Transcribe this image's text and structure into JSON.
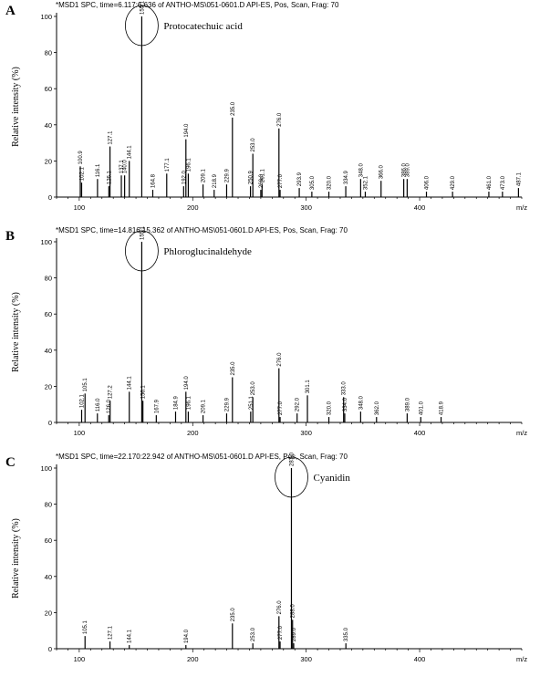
{
  "chart_data": [
    {
      "type": "bar",
      "panel": "A",
      "header": "*MSD1 SPC, time=6.117:6.636 of ANTHO-MS\\051-0601.D    API-ES, Pos, Scan, Frag: 70",
      "ylabel": "Relative intensity (%)",
      "xlabel": "m/z",
      "xlim": [
        80,
        490
      ],
      "ylim": [
        0,
        100
      ],
      "x_ticks": [
        100,
        200,
        300,
        400
      ],
      "y_ticks": [
        0,
        20,
        40,
        60,
        80,
        100
      ],
      "annotation": "Protocatechuic acid",
      "annotated_peak": 155.1,
      "peaks": [
        {
          "mz": 102.1,
          "y": 8,
          "label": "102.1"
        },
        {
          "mz": 100.9,
          "y": 17,
          "label": "100.9"
        },
        {
          "mz": 116.1,
          "y": 10,
          "label": "116.1"
        },
        {
          "mz": 126.1,
          "y": 6,
          "label": "126.1"
        },
        {
          "mz": 127.1,
          "y": 28,
          "label": "127.1"
        },
        {
          "mz": 137.1,
          "y": 12,
          "label": "137.1"
        },
        {
          "mz": 140.0,
          "y": 12,
          "label": "140.0"
        },
        {
          "mz": 144.1,
          "y": 20,
          "label": "144.1"
        },
        {
          "mz": 155.1,
          "y": 100,
          "label": "155.1"
        },
        {
          "mz": 164.8,
          "y": 4,
          "label": "164.8"
        },
        {
          "mz": 177.1,
          "y": 13,
          "label": "177.1"
        },
        {
          "mz": 192.0,
          "y": 6,
          "label": "192.0"
        },
        {
          "mz": 194.0,
          "y": 32,
          "label": "194.0"
        },
        {
          "mz": 196.1,
          "y": 13,
          "label": "196.1"
        },
        {
          "mz": 209.1,
          "y": 7,
          "label": "209.1"
        },
        {
          "mz": 218.9,
          "y": 4,
          "label": "218.9"
        },
        {
          "mz": 229.9,
          "y": 7,
          "label": "229.9"
        },
        {
          "mz": 235.0,
          "y": 44,
          "label": "235.0"
        },
        {
          "mz": 250.9,
          "y": 6,
          "label": "250.9"
        },
        {
          "mz": 253.0,
          "y": 24,
          "label": "253.0"
        },
        {
          "mz": 260.0,
          "y": 4,
          "label": "260.0"
        },
        {
          "mz": 261.1,
          "y": 7,
          "label": "261.1"
        },
        {
          "mz": 276.0,
          "y": 38,
          "label": "276.0"
        },
        {
          "mz": 277.0,
          "y": 4,
          "label": "277.0"
        },
        {
          "mz": 293.9,
          "y": 5,
          "label": "293.9"
        },
        {
          "mz": 305.0,
          "y": 3,
          "label": "305.0"
        },
        {
          "mz": 320.0,
          "y": 3,
          "label": "320.0"
        },
        {
          "mz": 334.9,
          "y": 6,
          "label": "334.9"
        },
        {
          "mz": 348.0,
          "y": 10,
          "label": "348.0"
        },
        {
          "mz": 352.1,
          "y": 3,
          "label": "352.1"
        },
        {
          "mz": 366.0,
          "y": 9,
          "label": "366.0"
        },
        {
          "mz": 386.0,
          "y": 10,
          "label": "386.0"
        },
        {
          "mz": 389.0,
          "y": 10,
          "label": "389.0"
        },
        {
          "mz": 406.0,
          "y": 3,
          "label": "406.0"
        },
        {
          "mz": 429.0,
          "y": 3,
          "label": "429.0"
        },
        {
          "mz": 461.0,
          "y": 3,
          "label": "461.0"
        },
        {
          "mz": 473.0,
          "y": 3,
          "label": "473.0"
        },
        {
          "mz": 487.1,
          "y": 5,
          "label": "487.1"
        }
      ]
    },
    {
      "type": "bar",
      "panel": "B",
      "header": "*MSD1 SPC, time=14.816:15.362 of ANTHO-MS\\051-0601.D    API-ES, Pos, Scan, Frag: 70",
      "ylabel": "Relative intensity (%)",
      "xlabel": "m/z",
      "xlim": [
        80,
        490
      ],
      "ylim": [
        0,
        100
      ],
      "x_ticks": [
        100,
        200,
        300,
        400
      ],
      "y_ticks": [
        0,
        20,
        40,
        60,
        80,
        100
      ],
      "annotation": "Phloroglucinaldehyde",
      "annotated_peak": 155.1,
      "peaks": [
        {
          "mz": 102.1,
          "y": 7,
          "label": "102.1"
        },
        {
          "mz": 105.1,
          "y": 16,
          "label": "105.1"
        },
        {
          "mz": 116.0,
          "y": 5,
          "label": "116.0"
        },
        {
          "mz": 126.0,
          "y": 4,
          "label": "126.0"
        },
        {
          "mz": 127.2,
          "y": 12,
          "label": "127.2"
        },
        {
          "mz": 144.1,
          "y": 17,
          "label": "144.1"
        },
        {
          "mz": 155.1,
          "y": 100,
          "label": "155.1"
        },
        {
          "mz": 156.1,
          "y": 12,
          "label": "156.1"
        },
        {
          "mz": 167.9,
          "y": 4,
          "label": "167.9"
        },
        {
          "mz": 184.9,
          "y": 6,
          "label": "184.9"
        },
        {
          "mz": 194.0,
          "y": 17,
          "label": "194.0"
        },
        {
          "mz": 196.1,
          "y": 6,
          "label": "196.1"
        },
        {
          "mz": 209.1,
          "y": 4,
          "label": "209.1"
        },
        {
          "mz": 229.9,
          "y": 5,
          "label": "229.9"
        },
        {
          "mz": 235.0,
          "y": 25,
          "label": "235.0"
        },
        {
          "mz": 251.1,
          "y": 6,
          "label": "251.1"
        },
        {
          "mz": 253.0,
          "y": 14,
          "label": "253.0"
        },
        {
          "mz": 276.0,
          "y": 30,
          "label": "276.0"
        },
        {
          "mz": 277.0,
          "y": 3,
          "label": "277.0"
        },
        {
          "mz": 292.0,
          "y": 5,
          "label": "292.0"
        },
        {
          "mz": 301.1,
          "y": 15,
          "label": "301.1"
        },
        {
          "mz": 320.0,
          "y": 3,
          "label": "320.0"
        },
        {
          "mz": 334.0,
          "y": 5,
          "label": "334.0"
        },
        {
          "mz": 333.0,
          "y": 14,
          "label": "333.0"
        },
        {
          "mz": 348.0,
          "y": 6,
          "label": "348.0"
        },
        {
          "mz": 362.0,
          "y": 3,
          "label": "362.0"
        },
        {
          "mz": 389.0,
          "y": 5,
          "label": "389.0"
        },
        {
          "mz": 401.0,
          "y": 3,
          "label": "401.0"
        },
        {
          "mz": 418.9,
          "y": 3,
          "label": "418.9"
        }
      ]
    },
    {
      "type": "bar",
      "panel": "C",
      "header": "*MSD1 SPC, time=22.170:22.942 of ANTHO-MS\\051-0601.D    API-ES, Pos, Scan, Frag: 70",
      "ylabel": "Relative intensity (%)",
      "xlabel": "m/z",
      "xlim": [
        80,
        490
      ],
      "ylim": [
        0,
        100
      ],
      "x_ticks": [
        100,
        200,
        300,
        400
      ],
      "y_ticks": [
        0,
        20,
        40,
        60,
        80,
        100
      ],
      "annotation": "Cyanidin",
      "annotated_peak": 287.0,
      "peaks": [
        {
          "mz": 105.1,
          "y": 7,
          "label": "105.1"
        },
        {
          "mz": 127.1,
          "y": 4,
          "label": "127.1"
        },
        {
          "mz": 144.1,
          "y": 2,
          "label": "144.1"
        },
        {
          "mz": 194.0,
          "y": 2,
          "label": "194.0"
        },
        {
          "mz": 235.0,
          "y": 14,
          "label": "235.0"
        },
        {
          "mz": 253.0,
          "y": 3,
          "label": "253.0"
        },
        {
          "mz": 276.0,
          "y": 18,
          "label": "276.0"
        },
        {
          "mz": 277.0,
          "y": 4,
          "label": "277.0"
        },
        {
          "mz": 287.0,
          "y": 100,
          "label": "287.0"
        },
        {
          "mz": 288.0,
          "y": 16,
          "label": "288.0"
        },
        {
          "mz": 289.0,
          "y": 3,
          "label": "289.0"
        },
        {
          "mz": 335.0,
          "y": 3,
          "label": "335.0"
        }
      ]
    }
  ]
}
